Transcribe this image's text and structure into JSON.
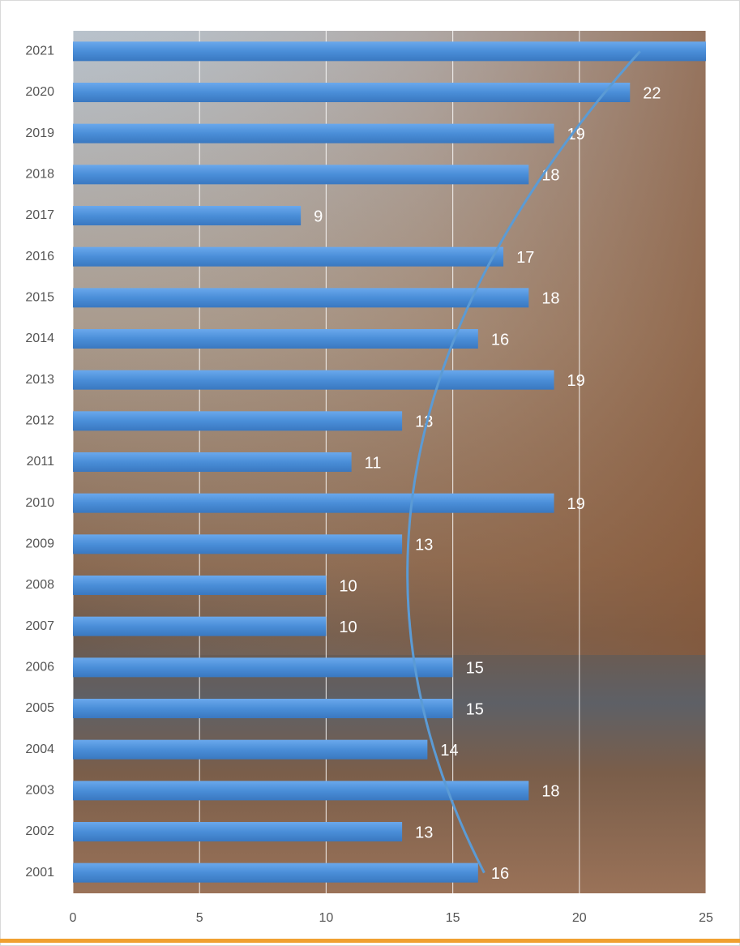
{
  "chart_data": {
    "type": "bar",
    "orientation": "horizontal",
    "categories": [
      "2001",
      "2002",
      "2003",
      "2004",
      "2005",
      "2006",
      "2007",
      "2008",
      "2009",
      "2010",
      "2011",
      "2012",
      "2013",
      "2014",
      "2015",
      "2016",
      "2017",
      "2018",
      "2019",
      "2020",
      "2021"
    ],
    "values": [
      16,
      13,
      18,
      14,
      15,
      15,
      10,
      10,
      13,
      19,
      11,
      13,
      19,
      16,
      18,
      17,
      9,
      18,
      19,
      22,
      25
    ],
    "value_labels": [
      "16",
      "13",
      "18",
      "14",
      "15",
      "15",
      "10",
      "10",
      "13",
      "19",
      "11",
      "13",
      "19",
      "16",
      "18",
      "17",
      "9",
      "18",
      "19",
      "22",
      null
    ],
    "color": "#4a8ed8",
    "xlim": [
      0,
      25
    ],
    "xticks": [
      0,
      5,
      10,
      15,
      20,
      25
    ],
    "grid": true,
    "trendline": "polynomial",
    "trendline_order": 2,
    "trendline_color": "#5b9bd5"
  }
}
